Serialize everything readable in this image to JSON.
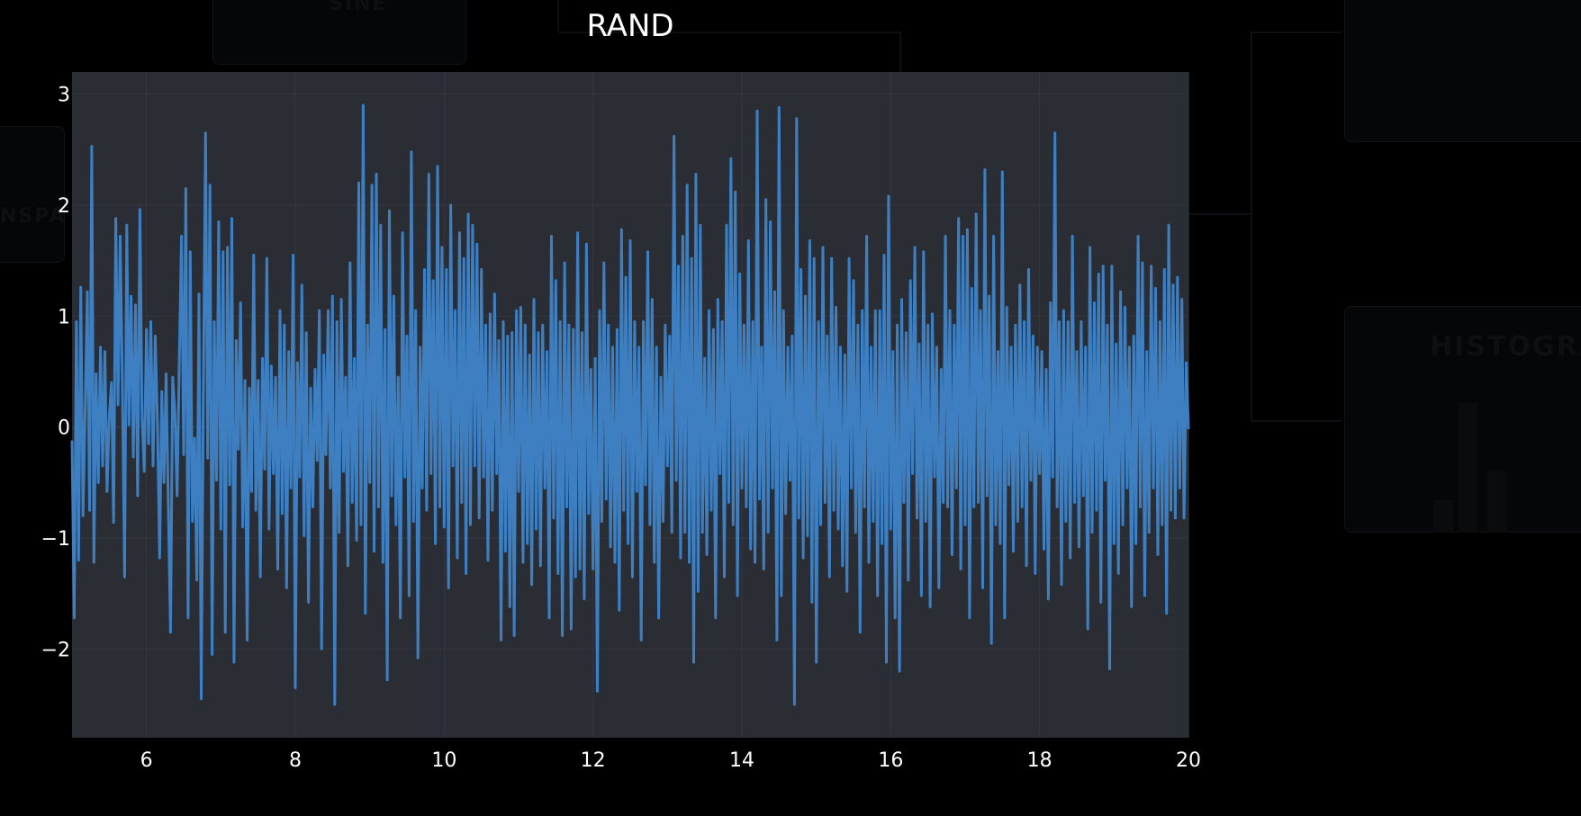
{
  "background": {
    "ghost_labels": [
      "SINE",
      "NSPA",
      "HISTOGRA"
    ]
  },
  "chart_data": {
    "type": "line",
    "title": "RAND",
    "xlabel": "",
    "ylabel": "",
    "xlim": [
      5,
      20
    ],
    "ylim": [
      -2.8,
      3.2
    ],
    "x_ticks": [
      6,
      8,
      10,
      12,
      14,
      16,
      18,
      20
    ],
    "y_ticks": [
      -2,
      -1,
      0,
      1,
      2,
      3
    ],
    "y_tick_labels": [
      "−2",
      "−1",
      "0",
      "1",
      "2",
      "3"
    ],
    "grid": true,
    "colors": {
      "line": "#3d7fc1",
      "plot_bg": "#2a2d34",
      "page_bg": "#000000",
      "grid": "#34373e",
      "text": "#ffffff"
    },
    "series": [
      {
        "x_start": 5,
        "x_end": 20,
        "values": [
          -0.12,
          -1.72,
          0.95,
          -1.2,
          1.26,
          -0.8,
          0.15,
          1.22,
          -0.75,
          2.53,
          -1.22,
          0.48,
          -0.5,
          0.72,
          -0.35,
          0.68,
          -0.58,
          0.08,
          0.4,
          -0.86,
          1.88,
          0.2,
          1.72,
          0.4,
          -1.35,
          1.82,
          0.02,
          1.18,
          -0.27,
          1.1,
          -0.62,
          1.96,
          0.08,
          -0.4,
          0.88,
          -0.15,
          0.95,
          -0.35,
          0.82,
          0.08,
          -1.18,
          0.32,
          -0.5,
          0.48,
          -0.72,
          -1.85,
          0.45,
          0.12,
          -0.62,
          0.58,
          1.72,
          -0.25,
          2.15,
          -1.72,
          1.58,
          -0.85,
          -0.1,
          -1.38,
          1.2,
          -2.45,
          0.35,
          2.65,
          -0.28,
          2.18,
          -2.05,
          0.95,
          -0.48,
          1.85,
          -0.92,
          1.58,
          -1.85,
          1.62,
          -0.52,
          1.88,
          -2.12,
          0.78,
          -0.2,
          1.12,
          -0.9,
          0.42,
          -1.92,
          0.35,
          -0.58,
          1.55,
          -0.75,
          0.42,
          -1.35,
          0.62,
          -0.38,
          1.52,
          -0.92,
          0.55,
          -0.42,
          0.45,
          -1.28,
          1.05,
          -0.78,
          0.92,
          -1.45,
          0.68,
          -0.55,
          1.55,
          -2.35,
          0.58,
          -0.45,
          1.28,
          -0.98,
          0.85,
          -1.58,
          0.35,
          -0.72,
          0.52,
          -0.3,
          1.05,
          -2.0,
          0.65,
          -0.25,
          1.05,
          -0.55,
          1.18,
          -2.5,
          0.95,
          -0.95,
          1.15,
          -0.4,
          0.45,
          -1.25,
          1.48,
          -0.68,
          0.62,
          -1.02,
          2.2,
          -0.88,
          2.9,
          -1.68,
          0.92,
          -0.5,
          2.18,
          -1.12,
          2.28,
          -0.72,
          1.82,
          -1.22,
          0.88,
          -2.28,
          1.95,
          -0.62,
          1.18,
          -0.88,
          0.45,
          -1.72,
          1.75,
          -0.45,
          0.82,
          -1.52,
          2.48,
          -0.85,
          1.05,
          -2.08,
          0.72,
          -0.55,
          1.42,
          -0.75,
          2.28,
          -0.42,
          1.32,
          -1.05,
          2.35,
          -0.72,
          1.62,
          -0.9,
          1.42,
          -1.45,
          2.0,
          -0.35,
          1.05,
          -1.18,
          1.75,
          -0.68,
          1.52,
          -1.32,
          1.92,
          -0.88,
          1.82,
          -0.35,
          1.65,
          -0.82,
          1.42,
          -0.45,
          0.92,
          -1.2,
          1.02,
          -0.75,
          1.2,
          -0.42,
          0.78,
          -1.92,
          0.95,
          -1.12,
          0.82,
          -1.62,
          0.85,
          -1.88,
          1.05,
          -0.58,
          1.08,
          -1.22,
          0.92,
          -1.05,
          0.65,
          -1.42,
          1.15,
          -0.92,
          0.85,
          -1.25,
          0.92,
          -0.55,
          0.68,
          -1.72,
          1.72,
          -0.82,
          1.32,
          -1.32,
          0.95,
          -1.88,
          1.48,
          -0.72,
          0.92,
          -1.82,
          0.88,
          -1.35,
          1.75,
          -1.28,
          0.85,
          -1.55,
          1.65,
          -0.78,
          0.52,
          -1.28,
          0.62,
          -2.38,
          1.05,
          -0.85,
          1.48,
          -0.65,
          0.92,
          -1.08,
          0.72,
          -1.22,
          0.88,
          -1.65,
          1.78,
          -0.75,
          1.35,
          -1.05,
          1.68,
          -1.35,
          0.95,
          -0.58,
          0.72,
          -1.92,
          0.95,
          -0.52,
          1.58,
          -0.88,
          1.15,
          -1.22,
          0.72,
          -1.72,
          0.45,
          -0.85,
          0.92,
          -0.35,
          0.82,
          -0.95,
          2.62,
          -0.48,
          1.45,
          -1.18,
          1.72,
          -0.95,
          2.18,
          -1.22,
          1.52,
          -2.12,
          2.28,
          -1.48,
          1.82,
          -0.95,
          0.62,
          -1.15,
          1.05,
          -0.75,
          0.88,
          -1.72,
          1.15,
          -0.42,
          0.95,
          -1.35,
          1.82,
          -0.68,
          2.42,
          -0.88,
          2.12,
          -1.52,
          1.38,
          -0.55,
          0.92,
          -0.72,
          1.68,
          -1.1,
          0.95,
          -1.22,
          2.85,
          -0.65,
          0.72,
          -1.28,
          2.05,
          -0.95,
          1.85,
          -0.55,
          1.22,
          -1.92,
          2.88,
          -1.52,
          1.05,
          -0.78,
          0.72,
          -0.48,
          0.82,
          -2.5,
          2.78,
          -0.82,
          1.42,
          -1.18,
          1.18,
          -0.98,
          1.68,
          -1.58,
          1.52,
          -2.12,
          0.95,
          -0.88,
          1.62,
          -0.68,
          0.82,
          -1.35,
          1.52,
          -0.75,
          1.08,
          -0.92,
          0.72,
          -1.25,
          0.65,
          -1.48,
          1.52,
          -0.55,
          1.32,
          -0.95,
          0.92,
          -1.85,
          1.05,
          -0.72,
          1.72,
          -1.22,
          0.72,
          -0.85,
          1.05,
          -1.52,
          1.05,
          -1.05,
          1.55,
          -2.12,
          2.08,
          -0.92,
          0.68,
          -1.72,
          0.92,
          -2.2,
          1.15,
          -0.68,
          0.85,
          -1.38,
          1.32,
          -0.42,
          1.62,
          -0.82,
          0.75,
          -1.52,
          1.58,
          -0.85,
          0.92,
          -1.62,
          1.02,
          -0.45,
          0.72,
          -1.45,
          0.52,
          -0.68,
          1.72,
          -0.72,
          1.05,
          -1.15,
          0.92,
          -0.55,
          1.88,
          -1.28,
          1.72,
          -0.88,
          1.78,
          -1.72,
          1.25,
          -0.72,
          1.92,
          -0.68,
          1.05,
          -1.45,
          2.32,
          -0.62,
          1.18,
          -1.95,
          1.72,
          -0.88,
          0.68,
          -1.05,
          2.3,
          -1.72,
          1.08,
          -0.52,
          0.72,
          -1.12,
          0.92,
          -0.85,
          1.28,
          -0.72,
          0.95,
          -1.25,
          1.42,
          -0.48,
          0.82,
          -1.32,
          0.72,
          -0.42,
          0.68,
          -1.1,
          0.52,
          -1.55,
          1.12,
          -0.45,
          2.65,
          -0.72,
          0.95,
          -1.42,
          1.05,
          -0.85,
          0.95,
          -1.18,
          1.72,
          -0.68,
          0.68,
          -1.08,
          0.95,
          -0.62,
          0.72,
          -1.82,
          1.62,
          -0.95,
          1.12,
          -0.75,
          1.38,
          -1.58,
          1.45,
          -0.48,
          0.92,
          -2.18,
          1.45,
          -1.05,
          0.75,
          -1.32,
          1.22,
          -0.88,
          1.08,
          -0.55,
          0.72,
          -1.62,
          0.82,
          -1.05,
          1.72,
          -0.72,
          1.48,
          -1.52,
          0.68,
          -0.95,
          1.45,
          -0.55,
          1.25,
          -1.15,
          0.95,
          -0.88,
          1.42,
          -1.68,
          1.82,
          -0.75,
          1.28,
          -0.82,
          1.35,
          -0.55,
          1.15,
          -0.82,
          0.58,
          -0.02
        ]
      }
    ]
  }
}
